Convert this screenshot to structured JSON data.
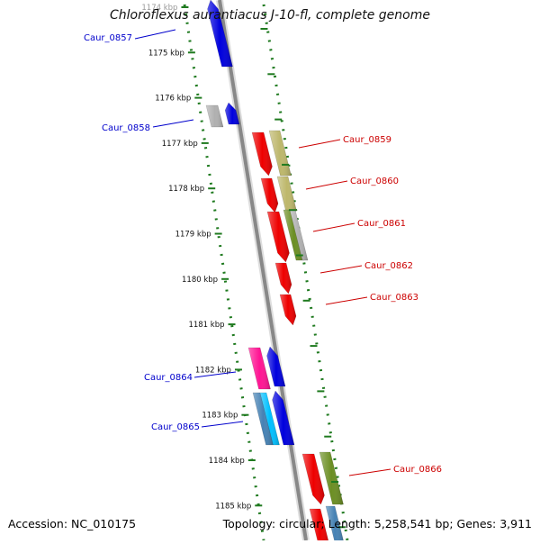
{
  "title": "Chloroflexus aurantiacus J-10-fl, complete genome",
  "accession": "Accession: NC_010175",
  "topology": "Topology: circular; Length: 5,258,541 bp; Genes: 3,911",
  "colors": {
    "red": "#ee0000",
    "blue": "#0000dd",
    "khaki": "#bdb76b",
    "olive": "#6b8e23",
    "gray": "#b0b0b0",
    "pink": "#ff1493",
    "cyan": "#00bfff",
    "steelblue": "#4682b4",
    "tick": "#1f7a1f",
    "left_label": "#0000cc",
    "right_label": "#cc0000",
    "backbone": "#888888"
  },
  "kbp_labels": [
    "1174 kbp",
    "1175 kbp",
    "1176 kbp",
    "1177 kbp",
    "1178 kbp",
    "1179 kbp",
    "1180 kbp",
    "1181 kbp",
    "1182 kbp",
    "1183 kbp",
    "1184 kbp",
    "1185 kbp"
  ],
  "genes": [
    {
      "name": "Caur_0857",
      "side": "left"
    },
    {
      "name": "Caur_0858",
      "side": "left"
    },
    {
      "name": "Caur_0859",
      "side": "right"
    },
    {
      "name": "Caur_0860",
      "side": "right"
    },
    {
      "name": "Caur_0861",
      "side": "right"
    },
    {
      "name": "Caur_0862",
      "side": "right"
    },
    {
      "name": "Caur_0863",
      "side": "right"
    },
    {
      "name": "Caur_0864",
      "side": "left"
    },
    {
      "name": "Caur_0865",
      "side": "left"
    },
    {
      "name": "Caur_0866",
      "side": "right"
    }
  ]
}
